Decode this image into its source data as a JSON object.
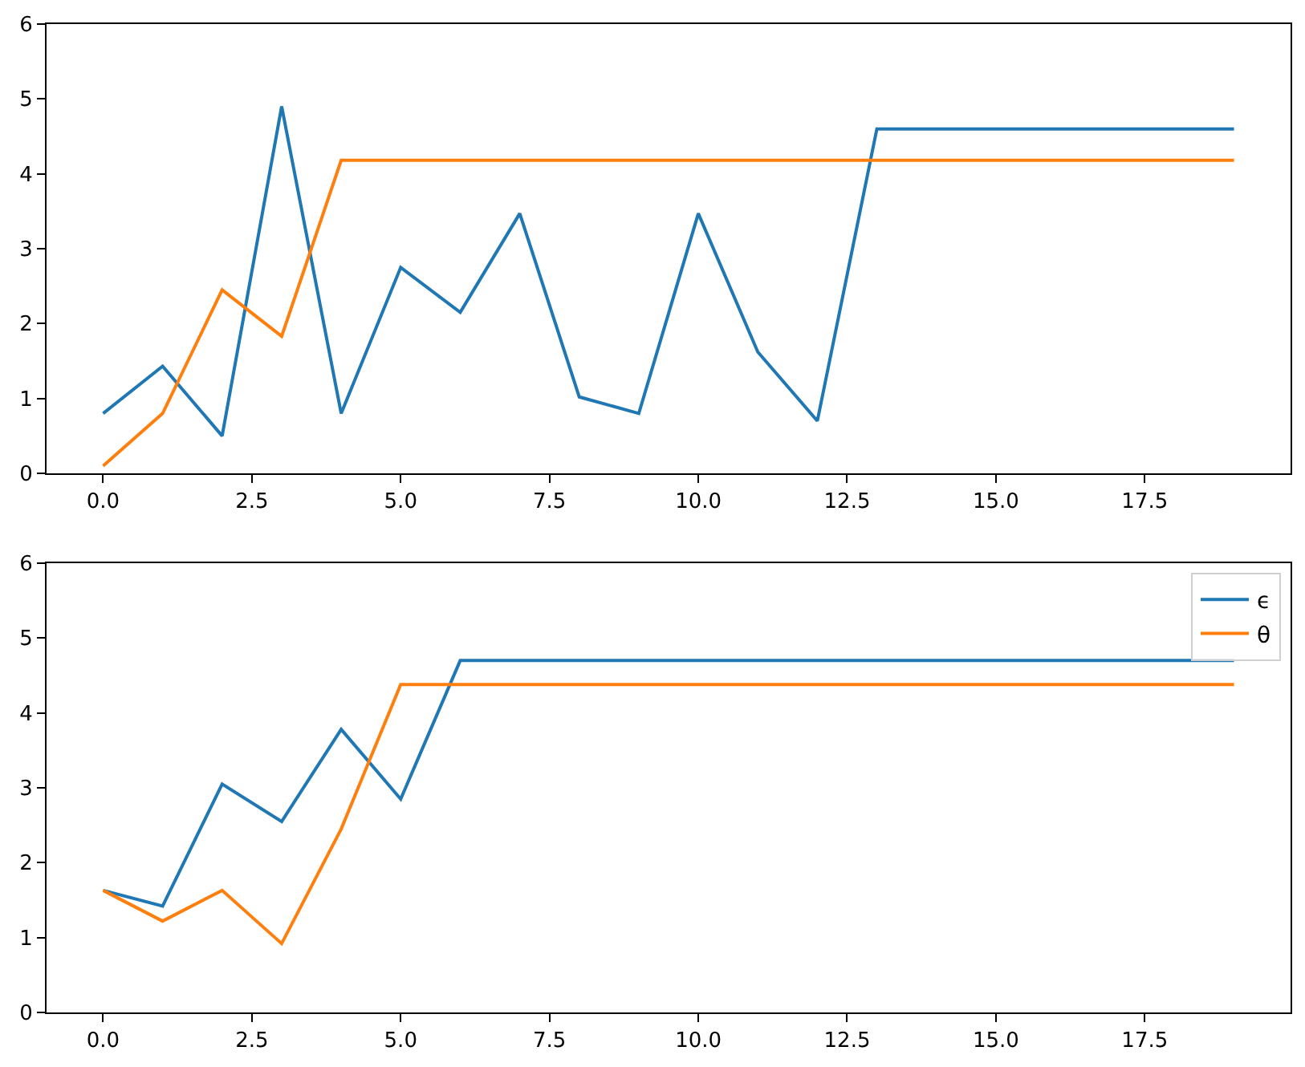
{
  "chart_data": [
    {
      "type": "line",
      "x": [
        0,
        1,
        2,
        3,
        4,
        5,
        6,
        7,
        8,
        9,
        10,
        11,
        12,
        13,
        14,
        15,
        16,
        17,
        18,
        19
      ],
      "xlim": [
        -0.95,
        19.95
      ],
      "xticks": [
        {
          "value": 0,
          "label": "0.0"
        },
        {
          "value": 2.5,
          "label": "2.5"
        },
        {
          "value": 5,
          "label": "5.0"
        },
        {
          "value": 7.5,
          "label": "7.5"
        },
        {
          "value": 10,
          "label": "10.0"
        },
        {
          "value": 12.5,
          "label": "12.5"
        },
        {
          "value": 15,
          "label": "15.0"
        },
        {
          "value": 17.5,
          "label": "17.5"
        }
      ],
      "ylim": [
        0,
        6
      ],
      "yticks": [
        0,
        1,
        2,
        3,
        4,
        5,
        6
      ],
      "series": [
        {
          "color": "#1f77b4",
          "values": [
            0.8,
            1.43,
            0.5,
            4.9,
            0.8,
            2.75,
            2.15,
            3.47,
            1.02,
            0.8,
            3.47,
            1.62,
            0.7,
            4.6,
            4.6,
            4.6,
            4.6,
            4.6,
            4.6,
            4.6
          ]
        },
        {
          "color": "#ff7f0e",
          "values": [
            0.1,
            0.8,
            2.45,
            1.83,
            4.18,
            4.18,
            4.18,
            4.18,
            4.18,
            4.18,
            4.18,
            4.18,
            4.18,
            4.18,
            4.18,
            4.18,
            4.18,
            4.18,
            4.18,
            4.18
          ]
        }
      ]
    },
    {
      "type": "line",
      "x": [
        0,
        1,
        2,
        3,
        4,
        5,
        6,
        7,
        8,
        9,
        10,
        11,
        12,
        13,
        14,
        15,
        16,
        17,
        18,
        19
      ],
      "xlim": [
        -0.95,
        19.95
      ],
      "xticks": [
        {
          "value": 0,
          "label": "0.0"
        },
        {
          "value": 2.5,
          "label": "2.5"
        },
        {
          "value": 5,
          "label": "5.0"
        },
        {
          "value": 7.5,
          "label": "7.5"
        },
        {
          "value": 10,
          "label": "10.0"
        },
        {
          "value": 12.5,
          "label": "12.5"
        },
        {
          "value": 15,
          "label": "15.0"
        },
        {
          "value": 17.5,
          "label": "17.5"
        }
      ],
      "ylim": [
        0,
        6
      ],
      "yticks": [
        0,
        1,
        2,
        3,
        4,
        5,
        6
      ],
      "legend": "top right",
      "series": [
        {
          "name": "ϵ",
          "color": "#1f77b4",
          "values": [
            1.63,
            1.42,
            3.05,
            2.55,
            3.78,
            2.85,
            4.7,
            4.7,
            4.7,
            4.7,
            4.7,
            4.7,
            4.7,
            4.7,
            4.7,
            4.7,
            4.7,
            4.7,
            4.7,
            4.7
          ]
        },
        {
          "name": "θ",
          "color": "#ff7f0e",
          "values": [
            1.63,
            1.22,
            1.63,
            0.92,
            2.45,
            4.38,
            4.38,
            4.38,
            4.38,
            4.38,
            4.38,
            4.38,
            4.38,
            4.38,
            4.38,
            4.38,
            4.38,
            4.38,
            4.38,
            4.38
          ]
        }
      ]
    }
  ]
}
